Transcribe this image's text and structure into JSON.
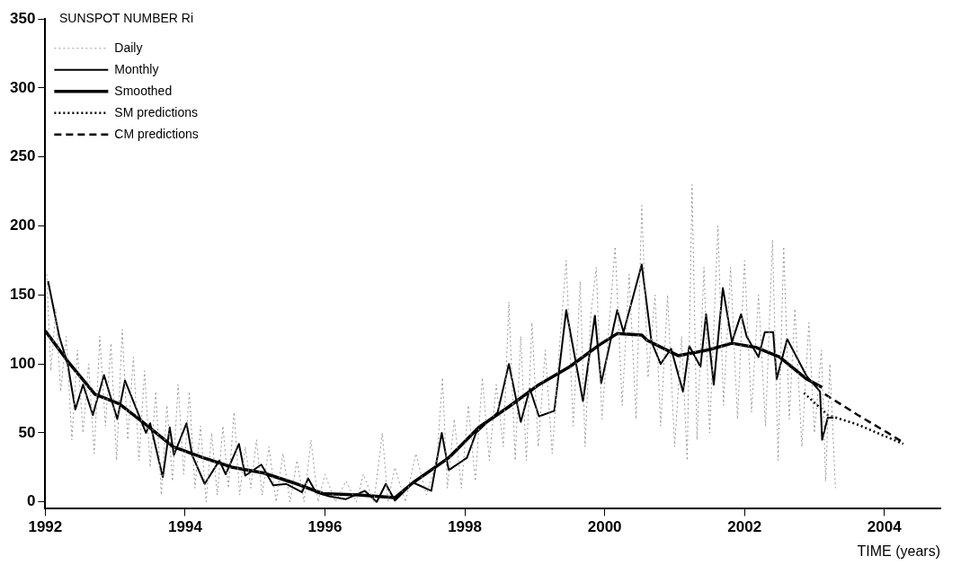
{
  "chart_data": {
    "type": "line",
    "xlabel": "TIME (years)",
    "legend_title": "SUNSPOT NUMBER Ri",
    "legend": "top left",
    "grid": false,
    "marker": "none",
    "xlim": [
      1992,
      2004.8
    ],
    "xticks": [
      1992,
      1994,
      1996,
      1998,
      2000,
      2002,
      2004
    ],
    "ylim": [
      -5,
      350
    ],
    "yticks": [
      0,
      50,
      100,
      150,
      200,
      250,
      300,
      350
    ],
    "series": [
      {
        "name": "Daily",
        "color": "#999999",
        "line_style": "dotted",
        "x": [
          1992.02,
          1992.08,
          1992.15,
          1992.22,
          1992.3,
          1992.38,
          1992.46,
          1992.54,
          1992.62,
          1992.7,
          1992.78,
          1992.86,
          1992.94,
          1993.02,
          1993.1,
          1993.18,
          1993.26,
          1993.34,
          1993.42,
          1993.5,
          1993.58,
          1993.66,
          1993.74,
          1993.82,
          1993.9,
          1993.98,
          1994.06,
          1994.14,
          1994.22,
          1994.3,
          1994.38,
          1994.46,
          1994.54,
          1994.62,
          1994.7,
          1994.78,
          1994.86,
          1994.94,
          1995.02,
          1995.1,
          1995.2,
          1995.3,
          1995.4,
          1995.5,
          1995.6,
          1995.7,
          1995.8,
          1995.9,
          1996.0,
          1996.15,
          1996.3,
          1996.45,
          1996.55,
          1996.7,
          1996.82,
          1996.9,
          1997.0,
          1997.15,
          1997.3,
          1997.45,
          1997.6,
          1997.68,
          1997.75,
          1997.85,
          1997.95,
          1998.05,
          1998.15,
          1998.25,
          1998.35,
          1998.45,
          1998.55,
          1998.63,
          1998.72,
          1998.8,
          1998.88,
          1998.96,
          1999.05,
          1999.15,
          1999.25,
          1999.35,
          1999.45,
          1999.55,
          1999.65,
          1999.72,
          1999.8,
          1999.88,
          1999.96,
          2000.05,
          2000.15,
          2000.25,
          2000.35,
          2000.45,
          2000.53,
          2000.62,
          2000.72,
          2000.8,
          2000.9,
          2001.0,
          2001.1,
          2001.18,
          2001.25,
          2001.32,
          2001.42,
          2001.5,
          2001.62,
          2001.7,
          2001.8,
          2001.9,
          2002.0,
          2002.1,
          2002.2,
          2002.3,
          2002.4,
          2002.48,
          2002.56,
          2002.64,
          2002.72,
          2002.82,
          2002.92,
          2003.0,
          2003.1,
          2003.16,
          2003.22,
          2003.3
        ],
        "values": [
          165,
          95,
          140,
          80,
          120,
          45,
          110,
          50,
          100,
          35,
          120,
          55,
          115,
          30,
          125,
          45,
          105,
          30,
          95,
          25,
          80,
          5,
          70,
          15,
          85,
          20,
          80,
          10,
          55,
          0,
          50,
          5,
          55,
          10,
          65,
          5,
          40,
          10,
          45,
          5,
          40,
          0,
          35,
          0,
          30,
          0,
          45,
          0,
          20,
          0,
          15,
          0,
          20,
          0,
          50,
          0,
          25,
          0,
          35,
          5,
          30,
          90,
          10,
          60,
          10,
          70,
          15,
          90,
          30,
          85,
          40,
          145,
          30,
          120,
          30,
          130,
          40,
          110,
          35,
          110,
          175,
          55,
          160,
          40,
          135,
          170,
          60,
          120,
          185,
          70,
          165,
          60,
          215,
          90,
          150,
          55,
          150,
          40,
          120,
          30,
          230,
          45,
          170,
          50,
          200,
          70,
          170,
          60,
          175,
          65,
          150,
          55,
          190,
          30,
          185,
          60,
          140,
          40,
          130,
          50,
          110,
          15,
          100,
          10
        ]
      },
      {
        "name": "Monthly",
        "color": "#000000",
        "line_style": "solid",
        "x": [
          1992.04,
          1992.2,
          1992.32,
          1992.43,
          1992.54,
          1992.68,
          1992.84,
          1993.03,
          1993.14,
          1993.44,
          1993.5,
          1993.68,
          1993.78,
          1993.84,
          1994.02,
          1994.1,
          1994.28,
          1994.49,
          1994.58,
          1994.77,
          1994.86,
          1995.09,
          1995.26,
          1995.45,
          1995.67,
          1995.76,
          1995.87,
          1996.06,
          1996.3,
          1996.57,
          1996.74,
          1996.87,
          1997.0,
          1997.26,
          1997.52,
          1997.67,
          1997.77,
          1998.03,
          1998.16,
          1998.47,
          1998.63,
          1998.8,
          1998.93,
          1999.06,
          1999.28,
          1999.45,
          1999.69,
          1999.86,
          1999.95,
          2000.18,
          2000.27,
          2000.53,
          2000.67,
          2000.8,
          2000.95,
          2001.12,
          2001.21,
          2001.37,
          2001.45,
          2001.56,
          2001.69,
          2001.82,
          2001.95,
          2002.03,
          2002.2,
          2002.29,
          2002.41,
          2002.46,
          2002.61,
          2002.89,
          2003.08,
          2003.11,
          2003.19,
          2003.27
        ],
        "values": [
          160,
          120,
          100,
          67,
          85,
          63,
          92,
          60,
          88,
          50,
          57,
          18,
          54,
          34,
          57,
          34,
          13,
          30,
          20,
          42,
          19,
          27,
          12,
          13,
          7,
          17,
          7,
          4,
          2,
          8,
          0,
          13,
          1,
          14,
          8,
          50,
          23,
          32,
          50,
          65,
          100,
          58,
          82,
          62,
          66,
          139,
          73,
          135,
          86,
          139,
          123,
          172,
          116,
          100,
          111,
          80,
          113,
          98,
          136,
          85,
          155,
          116,
          136,
          120,
          105,
          123,
          123,
          89,
          118,
          91,
          80,
          45,
          61,
          61
        ]
      },
      {
        "name": "Smoothed",
        "color": "#000000",
        "line_style": "solid",
        "x": [
          1992.0,
          1992.32,
          1992.71,
          1993.06,
          1993.39,
          1993.83,
          1994.26,
          1994.68,
          1995.12,
          1995.54,
          1995.97,
          1996.48,
          1997.0,
          1997.26,
          1997.77,
          1998.2,
          1998.63,
          1999.06,
          1999.5,
          1999.93,
          2000.18,
          2000.53,
          2000.61,
          2001.05,
          2001.47,
          2001.82,
          2002.16,
          2002.5,
          2002.89,
          2003.11
        ],
        "values": [
          124,
          102,
          78,
          71,
          58,
          40,
          32,
          25,
          21,
          14,
          6,
          5,
          3,
          14,
          32,
          54,
          69,
          85,
          98,
          114,
          122,
          121,
          117,
          106,
          110,
          115,
          112,
          105,
          89,
          83
        ]
      },
      {
        "name": "SM predictions",
        "color": "#000000",
        "line_style": "dotted",
        "x": [
          2002.85,
          2003.19,
          2003.62,
          2004.27
        ],
        "values": [
          79,
          63,
          56,
          42
        ]
      },
      {
        "name": "CM predictions",
        "color": "#000000",
        "line_style": "dashed",
        "x": [
          2003.15,
          2003.62,
          2004.05,
          2004.24
        ],
        "values": [
          78,
          63,
          50,
          44
        ]
      }
    ]
  }
}
